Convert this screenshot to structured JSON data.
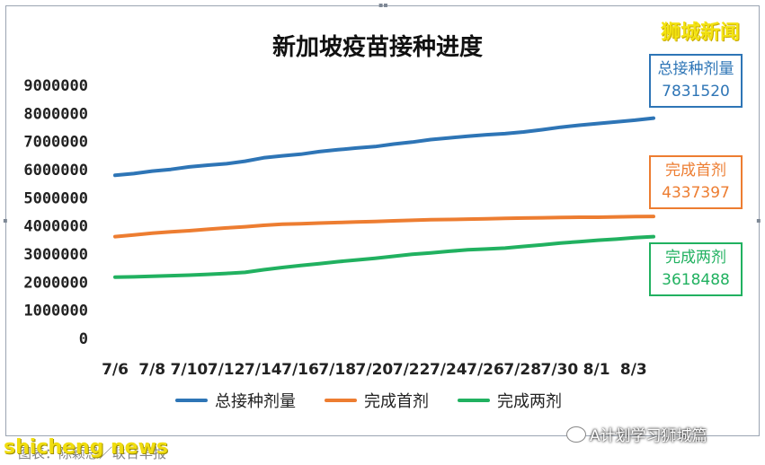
{
  "chart_data": {
    "type": "line",
    "title": "新加坡疫苗接种进度",
    "xlabel": "",
    "ylabel": "",
    "x_tick_labels": [
      "7/6",
      "7/8",
      "7/10",
      "7/12",
      "7/14",
      "7/16",
      "7/18",
      "7/20",
      "7/22",
      "7/24",
      "7/26",
      "7/28",
      "7/30",
      "8/1",
      "8/3"
    ],
    "y_tick_labels": [
      "0",
      "1000000",
      "2000000",
      "3000000",
      "4000000",
      "5000000",
      "6000000",
      "7000000",
      "8000000",
      "9000000"
    ],
    "ylim": [
      0,
      9000000
    ],
    "grid": false,
    "legend_position": "bottom",
    "series": [
      {
        "name": "总接种剂量",
        "color": "#2e75b6",
        "values": [
          5800000,
          5860000,
          5950000,
          6010000,
          6100000,
          6160000,
          6210000,
          6300000,
          6420000,
          6490000,
          6550000,
          6640000,
          6710000,
          6770000,
          6820000,
          6910000,
          6980000,
          7070000,
          7130000,
          7190000,
          7240000,
          7280000,
          7340000,
          7420000,
          7510000,
          7580000,
          7640000,
          7700000,
          7760000,
          7831520
        ]
      },
      {
        "name": "完成首剂",
        "color": "#ed7d31",
        "values": [
          3620000,
          3680000,
          3740000,
          3790000,
          3830000,
          3880000,
          3930000,
          3970000,
          4020000,
          4060000,
          4080000,
          4100000,
          4120000,
          4140000,
          4160000,
          4180000,
          4200000,
          4220000,
          4230000,
          4240000,
          4250000,
          4270000,
          4280000,
          4290000,
          4300000,
          4310000,
          4310000,
          4320000,
          4330000,
          4337397
        ]
      },
      {
        "name": "完成两剂",
        "color": "#21b160",
        "values": [
          2180000,
          2190000,
          2210000,
          2230000,
          2250000,
          2280000,
          2310000,
          2350000,
          2440000,
          2520000,
          2590000,
          2660000,
          2730000,
          2790000,
          2850000,
          2920000,
          2990000,
          3040000,
          3100000,
          3150000,
          3180000,
          3210000,
          3270000,
          3330000,
          3390000,
          3440000,
          3490000,
          3530000,
          3580000,
          3618488
        ]
      }
    ],
    "callouts": [
      {
        "label": "总接种剂量",
        "value": "7831520",
        "color": "#2e75b6"
      },
      {
        "label": "完成首剂",
        "value": "4337397",
        "color": "#ed7d31"
      },
      {
        "label": "完成两剂",
        "value": "3618488",
        "color": "#21b160"
      }
    ]
  },
  "brand_mark": "狮城新闻",
  "watermark": "shicheng news",
  "caption_behind": "图表：陈颖思／联合早报",
  "wechat_credit": "A计划学习狮城篇"
}
